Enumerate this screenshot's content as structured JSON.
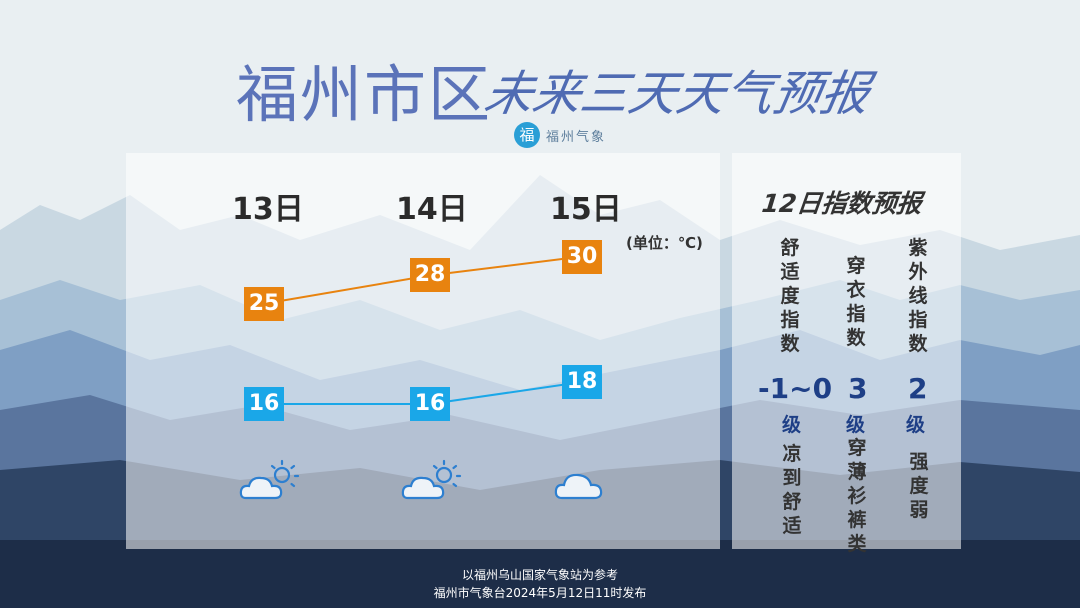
{
  "header": {
    "title_main": "福州市区",
    "title_sub": "未来三天天气预报",
    "logo_glyph": "福",
    "brand": "福州气象"
  },
  "forecast": {
    "unit_label": "(单位：℃)",
    "days": [
      {
        "label": "13日",
        "high": 25,
        "low": 16,
        "icon": "partly-cloudy-icon"
      },
      {
        "label": "14日",
        "high": 28,
        "low": 16,
        "icon": "partly-cloudy-icon"
      },
      {
        "label": "15日",
        "high": 30,
        "low": 18,
        "icon": "cloudy-icon"
      }
    ],
    "colors": {
      "high": "#e8830f",
      "low": "#1aa7e8",
      "icon": "#2d7fd0"
    }
  },
  "indices": {
    "title": "12日指数预报",
    "items": [
      {
        "name": "舒适度指数",
        "level": "-1~0",
        "unit": "级",
        "desc": "凉到舒适"
      },
      {
        "name": "穿衣指数",
        "level": "3",
        "unit": "级",
        "desc": "穿薄衫裤类"
      },
      {
        "name": "紫外线指数",
        "level": "2",
        "unit": "级",
        "desc": "强度弱"
      }
    ]
  },
  "footer": {
    "line1": "以福州乌山国家气象站为参考",
    "line2": "福州市气象台2024年5月12日11时发布"
  }
}
